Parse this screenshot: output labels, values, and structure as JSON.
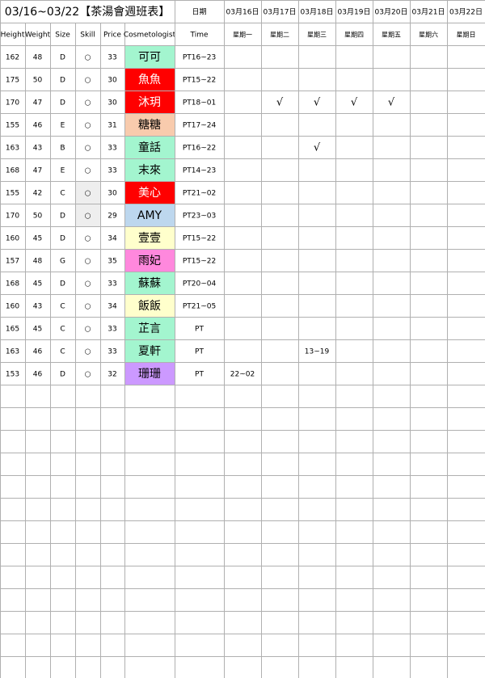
{
  "header": {
    "title": "03/16~03/22【茶湯會週班表】",
    "date_label": "日期",
    "dates": [
      "03月16日",
      "03月17日",
      "03月18日",
      "03月19日",
      "03月20日",
      "03月21日",
      "03月22日"
    ],
    "columns": [
      "Height",
      "Weight",
      "Size",
      "Skill",
      "Price",
      "Cosmetologist",
      "Time"
    ],
    "weekdays": [
      "星期一",
      "星期二",
      "星期三",
      "星期四",
      "星期五",
      "星期六",
      "星期日"
    ]
  },
  "rows": [
    {
      "height": 162,
      "weight": 48,
      "size": "D",
      "skill": "○",
      "price": 33,
      "name": "可可",
      "color": "#a3f5cf",
      "time": "PT16~23",
      "days": [
        null,
        null,
        null,
        null,
        null,
        null,
        null
      ]
    },
    {
      "height": 175,
      "weight": 50,
      "size": "D",
      "skill": "○",
      "price": 30,
      "name": "魚魚",
      "color": "#ff0000",
      "time": "PT15~22",
      "days": [
        null,
        null,
        null,
        null,
        null,
        null,
        null
      ]
    },
    {
      "height": 170,
      "weight": 47,
      "size": "D",
      "skill": "○",
      "price": 30,
      "name": "沐玥",
      "color": "#ff0000",
      "time": "PT18~01",
      "days": [
        null,
        "√",
        "√",
        "√",
        "√",
        null,
        null
      ]
    },
    {
      "height": 155,
      "weight": 46,
      "size": "E",
      "skill": "○",
      "price": 31,
      "name": "糖糖",
      "color": "#f8cbad",
      "time": "PT17~24",
      "days": [
        null,
        null,
        null,
        null,
        null,
        null,
        null
      ]
    },
    {
      "height": 163,
      "weight": 43,
      "size": "B",
      "skill": "○",
      "price": 33,
      "name": "童話",
      "color": "#a3f5cf",
      "time": "PT16~22",
      "days": [
        null,
        null,
        "√",
        null,
        null,
        null,
        null
      ]
    },
    {
      "height": 168,
      "weight": 47,
      "size": "E",
      "skill": "○",
      "price": 33,
      "name": "末來",
      "color": "#a3f5cf",
      "time": "PT14~23",
      "days": [
        null,
        null,
        null,
        null,
        null,
        null,
        null
      ]
    },
    {
      "height": 155,
      "weight": 42,
      "size": "C",
      "skill": "○",
      "skill_color": "#eeeeee",
      "price": 30,
      "name": "美心",
      "color": "#ff0000",
      "time": "PT21~02",
      "days": [
        null,
        null,
        null,
        null,
        null,
        null,
        null
      ]
    },
    {
      "height": 170,
      "weight": 50,
      "size": "D",
      "skill": "○",
      "skill_color": "#eeeeee",
      "price": 29,
      "name": "AMY",
      "color": "#bdd7ee",
      "time": "PT23~03",
      "days": [
        null,
        null,
        null,
        null,
        null,
        null,
        null
      ]
    },
    {
      "height": 160,
      "weight": 45,
      "size": "D",
      "skill": "○",
      "price": 34,
      "name": "壹壹",
      "color": "#ffffcc",
      "time": "PT15~22",
      "days": [
        null,
        null,
        null,
        null,
        null,
        null,
        null
      ]
    },
    {
      "height": 157,
      "weight": 48,
      "size": "G",
      "skill": "○",
      "price": 35,
      "name": "雨妃",
      "color": "#ff88dd",
      "time": "PT15~22",
      "days": [
        null,
        null,
        null,
        null,
        null,
        null,
        null
      ]
    },
    {
      "height": 168,
      "weight": 45,
      "size": "D",
      "skill": "○",
      "price": 33,
      "name": "蘇蘇",
      "color": "#a3f5cf",
      "time": "PT20~04",
      "days": [
        null,
        null,
        null,
        null,
        null,
        null,
        null
      ]
    },
    {
      "height": 160,
      "weight": 43,
      "size": "C",
      "skill": "○",
      "price": 34,
      "name": "飯飯",
      "color": "#ffffcc",
      "time": "PT21~05",
      "days": [
        null,
        null,
        null,
        null,
        null,
        null,
        null
      ]
    },
    {
      "height": 165,
      "weight": 45,
      "size": "C",
      "skill": "○",
      "price": 33,
      "name": "芷言",
      "color": "#a3f5cf",
      "time": "PT",
      "days": [
        null,
        null,
        null,
        null,
        null,
        null,
        null
      ]
    },
    {
      "height": 163,
      "weight": 46,
      "size": "C",
      "skill": "○",
      "price": 33,
      "name": "夏軒",
      "color": "#a3f5cf",
      "time": "PT",
      "days": [
        null,
        null,
        "13~19",
        null,
        null,
        null,
        null
      ]
    },
    {
      "height": 153,
      "weight": 46,
      "size": "D",
      "skill": "○",
      "price": 32,
      "name": "珊珊",
      "color": "#cc99ff",
      "time": "PT",
      "days": [
        "22~02",
        null,
        null,
        null,
        null,
        null,
        null
      ]
    }
  ]
}
